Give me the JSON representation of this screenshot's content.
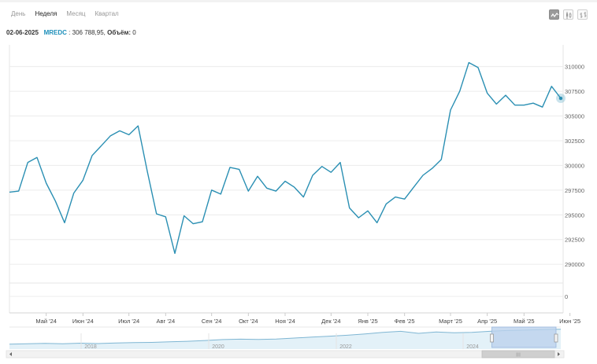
{
  "toolbar": {
    "tabs": [
      {
        "label": "День"
      },
      {
        "label": "Неделя"
      },
      {
        "label": "Месяц"
      },
      {
        "label": "Квартал"
      }
    ],
    "active_tab": "Неделя",
    "chart_types": [
      "line-chart-icon",
      "candlestick-chart-icon",
      "bar-chart-icon"
    ],
    "active_chart_type": "line-chart-icon"
  },
  "info": {
    "date": "02-06-2025",
    "ticker": "MREDC",
    "sep": ":",
    "value": "306 788,95,",
    "volume_label": "Объём:",
    "volume_value": "0"
  },
  "colors": {
    "line": "#2a8fb3",
    "accent": "#1d8fba",
    "navigator_fill": "#e3f1f8",
    "navigator_selection": "#bcd2ec"
  },
  "chart_data": {
    "type": "line",
    "series": [
      {
        "values": [
          297300,
          297400,
          300300,
          300800,
          298200,
          296400,
          294200,
          297200,
          298500,
          301000,
          302000,
          303000,
          303500,
          303100,
          304000,
          299400,
          295100,
          294800,
          291100,
          294900,
          294100,
          294300,
          297500,
          297100,
          299800,
          299600,
          297400,
          298900,
          297700,
          297400,
          298400,
          297800,
          296800,
          299000,
          299900,
          299300,
          300300,
          295700,
          294700,
          295400,
          294200,
          296100,
          296800,
          296600,
          297800,
          299000,
          299700,
          300600,
          305600,
          307500,
          310400,
          309900,
          307300,
          306200,
          307100,
          306100,
          306100,
          306300,
          305900,
          308000,
          306789
        ]
      }
    ],
    "x_labels": [
      "Май '24",
      "Июн '24",
      "Июл '24",
      "Авг '24",
      "Сен '24",
      "Окт '24",
      "Ноя '24",
      "Дек '24",
      "Янв '25",
      "Фев '25",
      "Март '25",
      "Апр '25",
      "Май '25",
      "Июн '25"
    ],
    "x_label_index": [
      4,
      8,
      13,
      17,
      22,
      26,
      30,
      35,
      39,
      43,
      48,
      52,
      56,
      61
    ],
    "y_ticks": [
      310000,
      307500,
      305000,
      302500,
      300000,
      297500,
      295000,
      292500,
      290000
    ],
    "y_range": [
      288500,
      312200
    ],
    "volume_y_ticks": [
      0
    ],
    "navigator": {
      "years": [
        "2018",
        "2020",
        "2022",
        "2024"
      ],
      "values": [
        0.18,
        0.2,
        0.22,
        0.2,
        0.23,
        0.21,
        0.24,
        0.26,
        0.27,
        0.3,
        0.33,
        0.37,
        0.42,
        0.44,
        0.43,
        0.45,
        0.5,
        0.55,
        0.6,
        0.65,
        0.72,
        0.8,
        0.86,
        0.75,
        0.82,
        0.78,
        0.8,
        0.86,
        0.9,
        0.92,
        0.95,
        0.97
      ],
      "selection_start_fraction": 0.875,
      "scrollbar_label": "III"
    },
    "last_point_marker": true,
    "grid": "horizontal"
  }
}
